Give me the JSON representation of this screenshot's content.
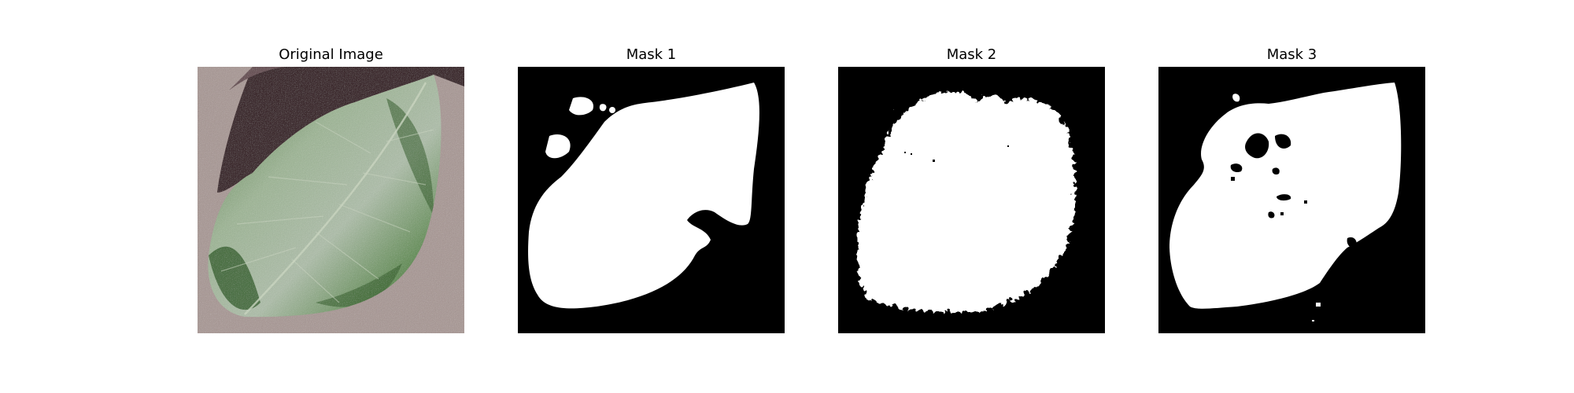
{
  "figure": {
    "panels": [
      {
        "title": "Original Image",
        "kind": "photo"
      },
      {
        "title": "Mask 1",
        "kind": "mask"
      },
      {
        "title": "Mask 2",
        "kind": "mask"
      },
      {
        "title": "Mask 3",
        "kind": "mask"
      }
    ]
  },
  "colors": {
    "mask_background": "#000000",
    "mask_foreground": "#ffffff",
    "photo_background": "#a99a97",
    "leaf_dark": "#3f6a33",
    "leaf_light": "#a8b8a0",
    "leaf_shadow": "#3a2a2c"
  }
}
